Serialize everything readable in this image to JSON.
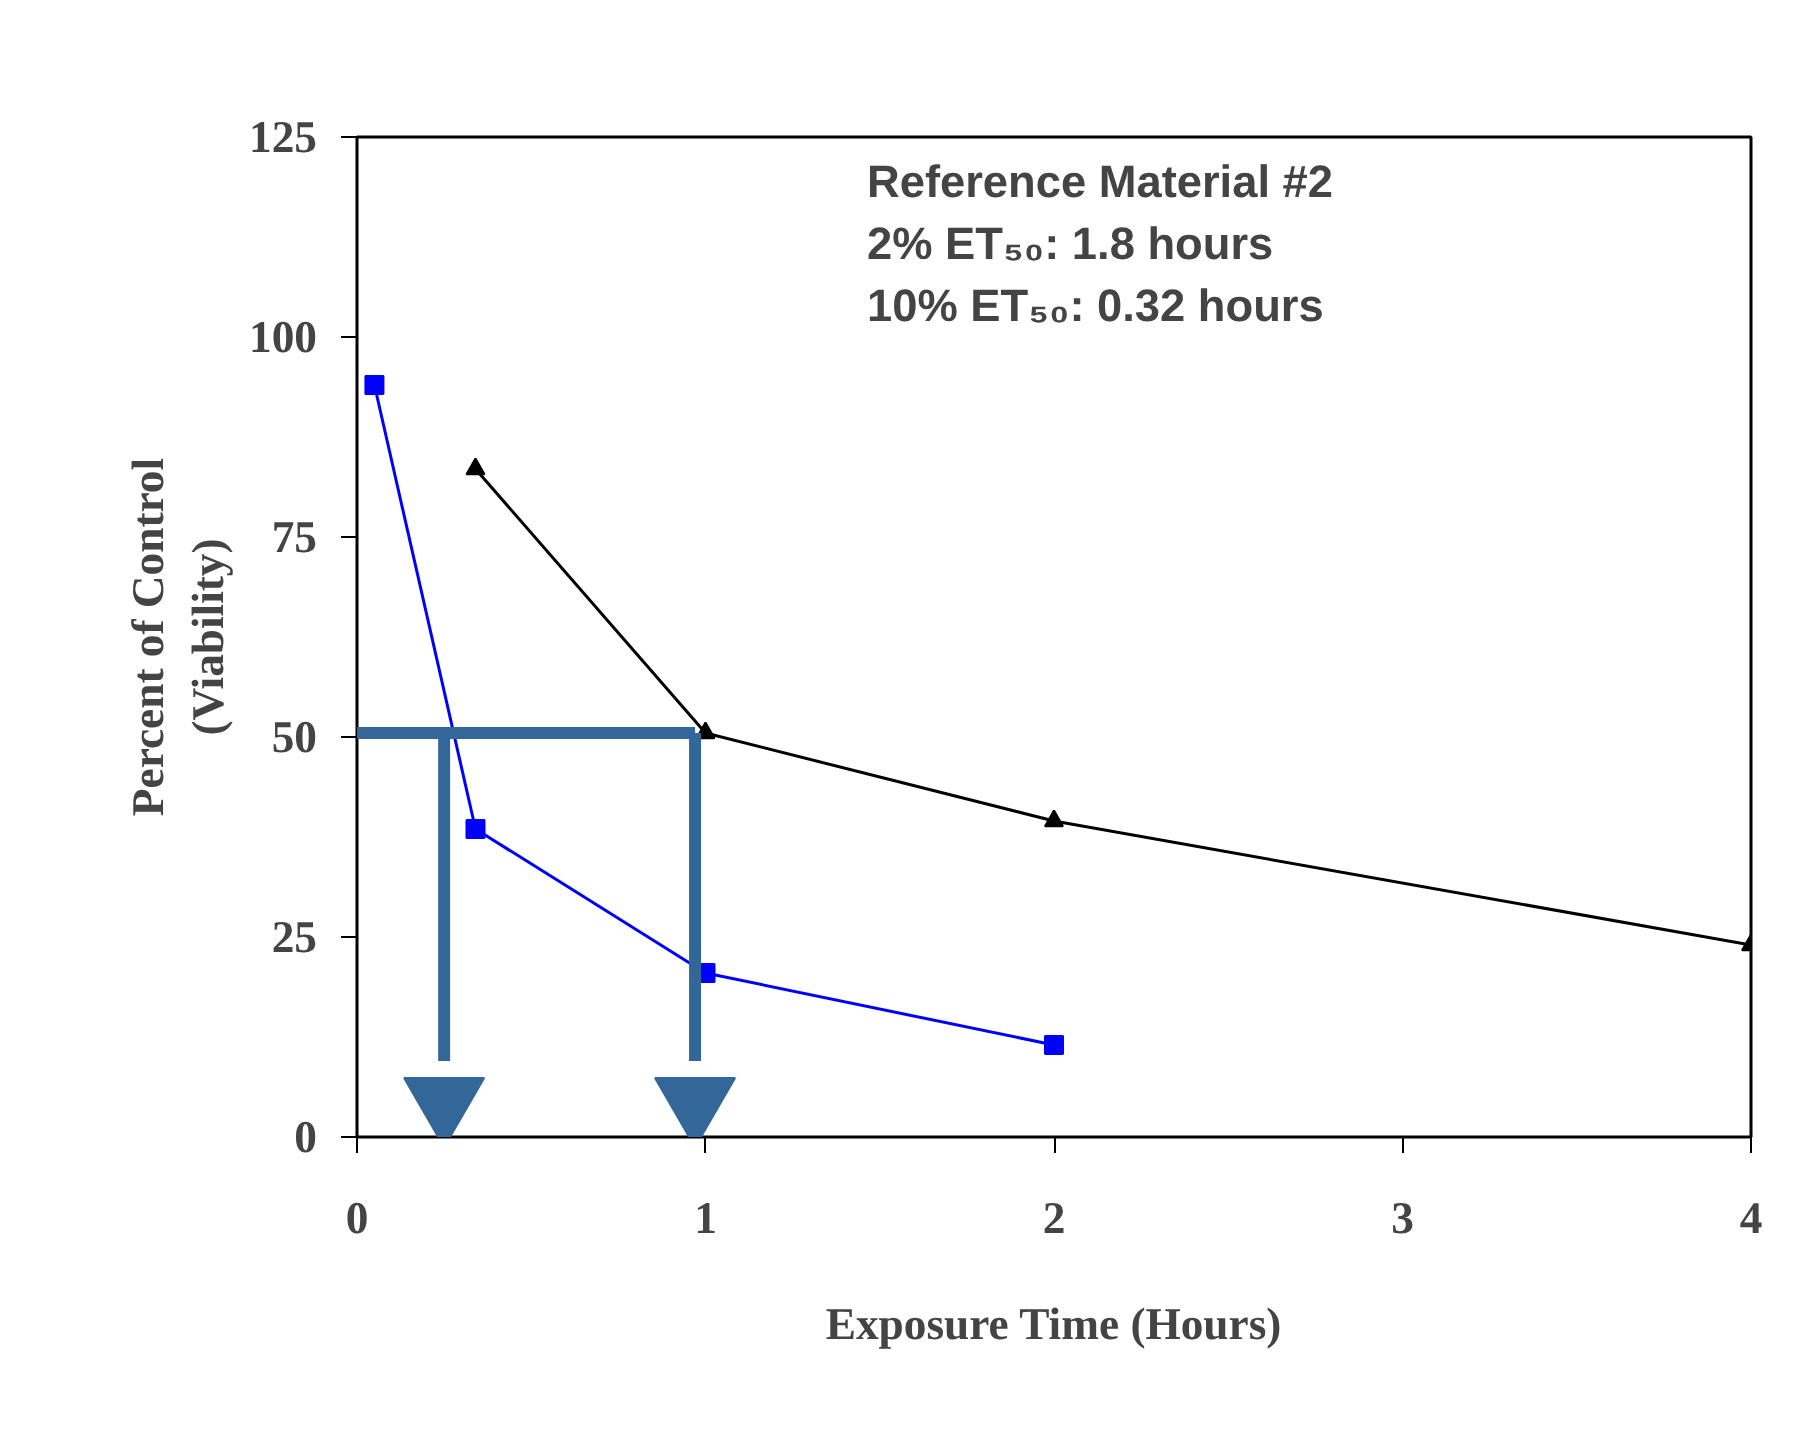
{
  "chart_data": {
    "type": "line",
    "xlabel": "Exposure Time (Hours)",
    "ylabel": "Percent of Control\n(Viability)",
    "annotations": [
      "Reference Material #2",
      "2% ET₅₀: 1.8 hours",
      "10% ET₅₀: 0.32 hours"
    ],
    "xlim": [
      0,
      4
    ],
    "ylim": [
      0,
      125
    ],
    "xticks": [
      0,
      1,
      2,
      3,
      4
    ],
    "yticks": [
      0,
      25,
      50,
      75,
      100,
      125
    ],
    "grid": false,
    "series": [
      {
        "color": "#0000ff",
        "marker": "square",
        "x": [
          0.05,
          0.34,
          1,
          2
        ],
        "values": [
          94,
          38.5,
          20.5,
          11.5
        ]
      },
      {
        "color": "#000000",
        "marker": "triangle",
        "x": [
          0.34,
          1,
          2,
          4
        ],
        "values": [
          83.5,
          50.5,
          39.5,
          24
        ]
      },
      {
        "color": "#336699",
        "marker": "none",
        "x": [
          0,
          0.97
        ],
        "values": [
          50.5,
          50.5
        ]
      },
      {
        "color": "#336699",
        "marker": "none",
        "x": [
          0.25,
          0.25
        ],
        "values": [
          50.5,
          9.5
        ]
      },
      {
        "color": "#336699",
        "marker": "none",
        "x": [
          0.97,
          0.97
        ],
        "values": [
          50.5,
          9.5
        ]
      },
      {
        "type": "scatter",
        "color": "#336699",
        "marker": "triangle",
        "x": [
          0.25,
          0.97
        ],
        "values": [
          4.5,
          4.5
        ]
      }
    ]
  }
}
